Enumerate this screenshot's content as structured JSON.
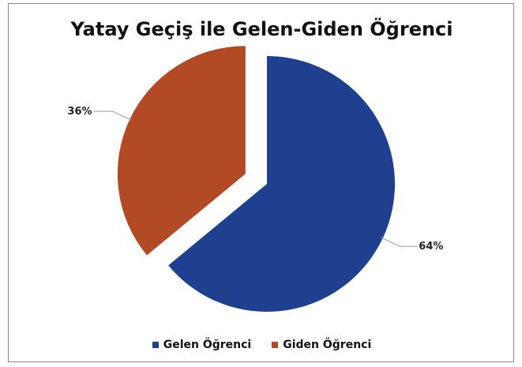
{
  "chart_data": {
    "type": "pie",
    "title": "Yatay Geçiş ile Gelen-Giden Öğrenci",
    "series": [
      {
        "name": "Gelen Öğrenci",
        "value": 64,
        "label": "64%",
        "color": "#1f3f8f"
      },
      {
        "name": "Giden Öğrenci",
        "value": 36,
        "label": "36%",
        "color": "#b24a25"
      }
    ],
    "exploded": "Giden Öğrenci",
    "legend_position": "bottom"
  }
}
